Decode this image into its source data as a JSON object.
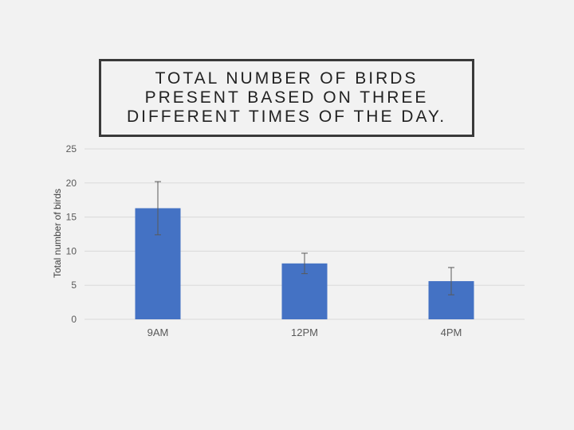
{
  "chart_data": {
    "type": "bar",
    "title": "TOTAL NUMBER OF BIRDS PRESENT BASED ON THREE DIFFERENT TIMES OF THE DAY.",
    "xlabel": "",
    "ylabel": "Total number of birds",
    "categories": [
      "9AM",
      "12PM",
      "4PM"
    ],
    "values": [
      16.3,
      8.2,
      5.6
    ],
    "error": [
      3.9,
      1.5,
      2.0
    ],
    "ylim": [
      0,
      25
    ],
    "yticks": [
      0,
      5,
      10,
      15,
      20,
      25
    ],
    "grid": true,
    "legend": "none",
    "colors": {
      "bar": "#4472c4",
      "grid": "#d9d9d9",
      "error_bar": "#595959",
      "text": "#595959"
    }
  }
}
